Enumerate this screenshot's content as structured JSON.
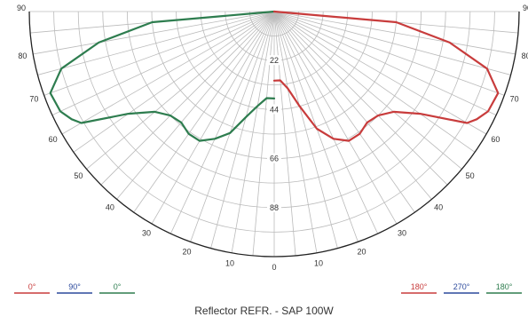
{
  "chart_data": {
    "type": "polar",
    "subtitle": "Reflector REFR. - SAP 100W",
    "rlim": [
      0,
      110
    ],
    "radial_ticks": [
      "22",
      "44",
      "66",
      "88"
    ],
    "angle_ticks": [
      "90",
      "80",
      "70",
      "60",
      "50",
      "40",
      "30",
      "20",
      "10",
      "0",
      "10",
      "20",
      "30",
      "40",
      "50",
      "60",
      "70",
      "80",
      "90"
    ],
    "colors": {
      "red": "#c83c3c",
      "blue": "#2c4a9c",
      "green": "#2e7d4f",
      "grid": "#bbbbbb",
      "outline": "#222222"
    },
    "legend_left": [
      {
        "label": "0°",
        "color": "#c83c3c"
      },
      {
        "label": "90°",
        "color": "#2c4a9c"
      },
      {
        "label": "0°",
        "color": "#2e7d4f"
      }
    ],
    "legend_right": [
      {
        "label": "180°",
        "color": "#c83c3c"
      },
      {
        "label": "270°",
        "color": "#2c4a9c"
      },
      {
        "label": "180°",
        "color": "#2e7d4f"
      }
    ],
    "series": [
      {
        "color": "#2e7d4f",
        "side": "left",
        "angles": [
          0,
          5,
          10,
          15,
          20,
          25,
          30,
          35,
          40,
          45,
          50,
          55,
          60,
          62,
          65,
          70,
          75,
          80,
          85,
          90
        ],
        "values": [
          39,
          39,
          43,
          49,
          58,
          63,
          67,
          67,
          65,
          66,
          70,
          80,
          100,
          103,
          106,
          107,
          99,
          80,
          55,
          0
        ]
      },
      {
        "color": "#c83c3c",
        "side": "right",
        "angles": [
          0,
          5,
          10,
          15,
          20,
          25,
          30,
          35,
          40,
          45,
          50,
          55,
          60,
          62,
          65,
          70,
          75,
          80,
          85,
          90
        ],
        "values": [
          31,
          31,
          35,
          44,
          56,
          63,
          67,
          67,
          65,
          66,
          70,
          80,
          100,
          103,
          106,
          107,
          99,
          80,
          55,
          0
        ]
      }
    ]
  }
}
